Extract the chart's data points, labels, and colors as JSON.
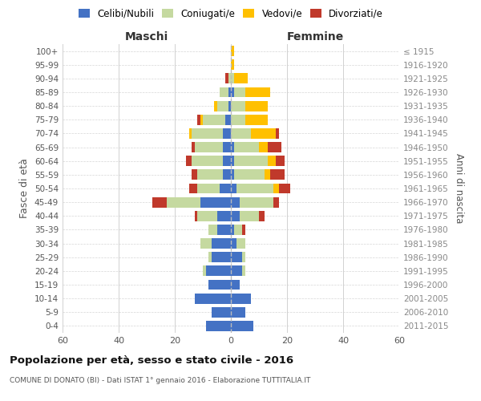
{
  "age_groups": [
    "0-4",
    "5-9",
    "10-14",
    "15-19",
    "20-24",
    "25-29",
    "30-34",
    "35-39",
    "40-44",
    "45-49",
    "50-54",
    "55-59",
    "60-64",
    "65-69",
    "70-74",
    "75-79",
    "80-84",
    "85-89",
    "90-94",
    "95-99",
    "100+"
  ],
  "birth_years": [
    "2011-2015",
    "2006-2010",
    "2001-2005",
    "1996-2000",
    "1991-1995",
    "1986-1990",
    "1981-1985",
    "1976-1980",
    "1971-1975",
    "1966-1970",
    "1961-1965",
    "1956-1960",
    "1951-1955",
    "1946-1950",
    "1941-1945",
    "1936-1940",
    "1931-1935",
    "1926-1930",
    "1921-1925",
    "1916-1920",
    "≤ 1915"
  ],
  "colors": {
    "celibi": "#4472c4",
    "coniugati": "#c5d9a0",
    "vedovi": "#ffc000",
    "divorziati": "#c0392b"
  },
  "maschi": {
    "celibi": [
      9,
      7,
      13,
      8,
      9,
      7,
      7,
      5,
      5,
      11,
      4,
      3,
      3,
      3,
      3,
      2,
      1,
      1,
      0,
      0,
      0
    ],
    "coniugati": [
      0,
      0,
      0,
      0,
      1,
      1,
      4,
      3,
      7,
      12,
      8,
      9,
      11,
      10,
      11,
      8,
      4,
      3,
      1,
      0,
      0
    ],
    "vedovi": [
      0,
      0,
      0,
      0,
      0,
      0,
      0,
      0,
      0,
      0,
      0,
      0,
      0,
      0,
      1,
      1,
      1,
      0,
      0,
      0,
      0
    ],
    "divorziati": [
      0,
      0,
      0,
      0,
      0,
      0,
      0,
      0,
      1,
      5,
      3,
      2,
      2,
      1,
      0,
      1,
      0,
      0,
      1,
      0,
      0
    ]
  },
  "femmine": {
    "celibi": [
      8,
      5,
      7,
      3,
      4,
      4,
      2,
      1,
      3,
      3,
      2,
      1,
      1,
      1,
      0,
      0,
      0,
      1,
      0,
      0,
      0
    ],
    "coniugati": [
      0,
      0,
      0,
      0,
      1,
      1,
      3,
      3,
      7,
      12,
      13,
      11,
      12,
      9,
      7,
      5,
      5,
      4,
      1,
      0,
      0
    ],
    "vedovi": [
      0,
      0,
      0,
      0,
      0,
      0,
      0,
      0,
      0,
      0,
      2,
      2,
      3,
      3,
      9,
      8,
      8,
      9,
      5,
      1,
      1
    ],
    "divorziati": [
      0,
      0,
      0,
      0,
      0,
      0,
      0,
      1,
      2,
      2,
      4,
      5,
      3,
      5,
      1,
      0,
      0,
      0,
      0,
      0,
      0
    ]
  },
  "xlim": 60,
  "title": "Popolazione per età, sesso e stato civile - 2016",
  "subtitle": "COMUNE DI DONATO (BI) - Dati ISTAT 1° gennaio 2016 - Elaborazione TUTTITALIA.IT",
  "ylabel_left": "Fasce di età",
  "ylabel_right": "Anni di nascita",
  "legend_labels": [
    "Celibi/Nubili",
    "Coniugati/e",
    "Vedovi/e",
    "Divorziati/e"
  ],
  "header_maschi": "Maschi",
  "header_femmine": "Femmine",
  "bg_color": "#ffffff",
  "grid_color": "#cccccc"
}
